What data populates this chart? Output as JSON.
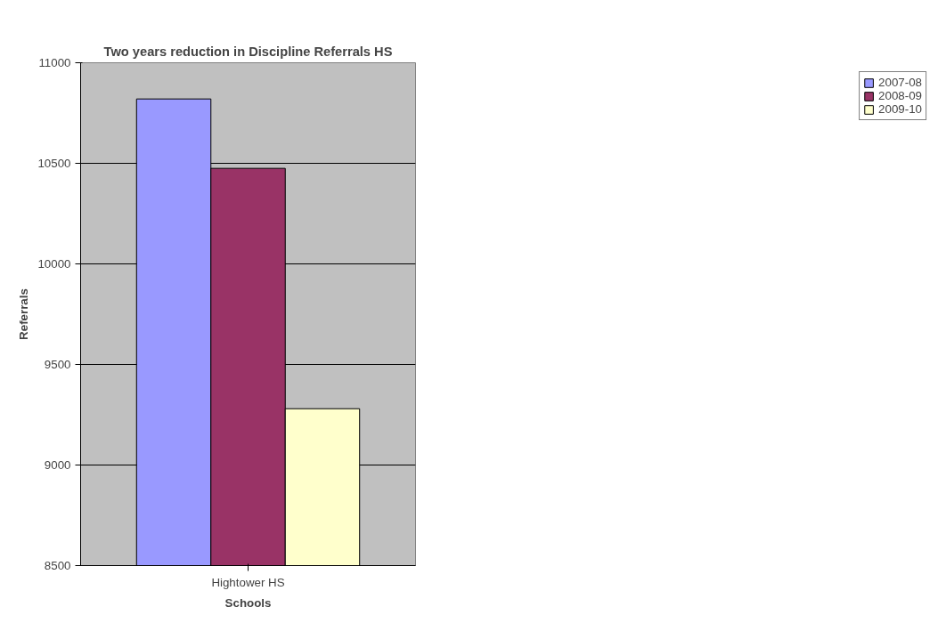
{
  "chart_data": {
    "type": "bar",
    "title": "Two years reduction in Discipline Referrals HS",
    "xlabel": "Schools",
    "ylabel": "Referrals",
    "categories": [
      "Hightower HS"
    ],
    "series": [
      {
        "name": "2007-08",
        "color": "#9999ff",
        "values": [
          10820
        ]
      },
      {
        "name": "2008-09",
        "color": "#993366",
        "values": [
          10475
        ]
      },
      {
        "name": "2009-10",
        "color": "#ffffcc",
        "values": [
          9280
        ]
      }
    ],
    "ylim": [
      8500,
      11000
    ],
    "yticks": [
      8500,
      9000,
      9500,
      10000,
      10500,
      11000
    ],
    "grid": "y",
    "legend": "right"
  }
}
